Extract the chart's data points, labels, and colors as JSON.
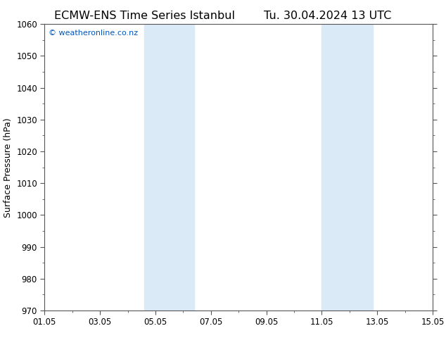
{
  "title_left": "ECMW-ENS Time Series Istanbul",
  "title_right": "Tu. 30.04.2024 13 UTC",
  "ylabel": "Surface Pressure (hPa)",
  "ylim": [
    970,
    1060
  ],
  "yticks": [
    970,
    980,
    990,
    1000,
    1010,
    1020,
    1030,
    1040,
    1050,
    1060
  ],
  "xtick_labels": [
    "01.05",
    "03.05",
    "05.05",
    "07.05",
    "09.05",
    "11.05",
    "13.05",
    "15.05"
  ],
  "xtick_positions": [
    0,
    2,
    4,
    6,
    8,
    10,
    12,
    14
  ],
  "xlim_start": 0,
  "xlim_end": 14,
  "shaded_bands": [
    {
      "xmin": 3.6,
      "xmax": 5.4
    },
    {
      "xmin": 10.0,
      "xmax": 11.85
    }
  ],
  "band_color": "#dbeaf7",
  "watermark_text": "© weatheronline.co.nz",
  "watermark_color": "#0055bb",
  "background_color": "#ffffff",
  "plot_bg_color": "#ffffff",
  "title_fontsize": 11.5,
  "label_fontsize": 9,
  "tick_fontsize": 8.5
}
